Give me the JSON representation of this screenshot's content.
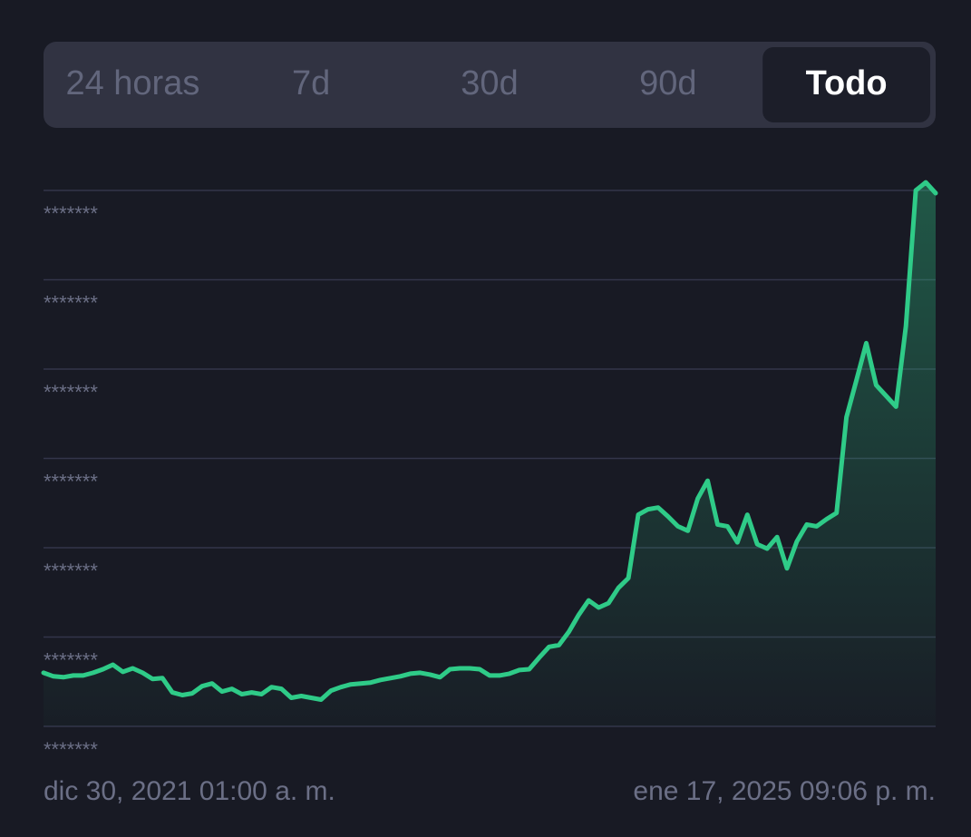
{
  "tabs": [
    "24 horas",
    "7d",
    "30d",
    "90d",
    "Todo"
  ],
  "selected_tab": 4,
  "chart_data": {
    "type": "line",
    "color": "#2fcb88",
    "categories": [
      "dic 30, 2021 01:00 a. m.",
      null,
      null,
      null,
      null,
      null,
      null,
      null,
      null,
      null,
      null,
      null,
      null,
      null,
      null,
      null,
      null,
      null,
      null,
      null,
      null,
      null,
      null,
      null,
      null,
      null,
      null,
      null,
      null,
      null,
      null,
      null,
      null,
      null,
      null,
      null,
      null,
      null,
      null,
      null,
      null,
      null,
      null,
      null,
      null,
      null,
      null,
      null,
      null,
      null,
      null,
      null,
      null,
      null,
      null,
      null,
      null,
      null,
      null,
      null,
      null,
      null,
      null,
      null,
      null,
      null,
      null,
      null,
      null,
      null,
      null,
      null,
      null,
      null,
      null,
      null,
      null,
      null,
      null,
      null,
      null,
      null,
      null,
      null,
      null,
      null,
      null,
      null,
      null,
      null,
      "ene 17, 2025 09:06 p. m."
    ],
    "values": [
      0.6,
      0.56,
      0.55,
      0.57,
      0.57,
      0.6,
      0.64,
      0.69,
      0.61,
      0.65,
      0.6,
      0.53,
      0.54,
      0.38,
      0.35,
      0.37,
      0.45,
      0.48,
      0.39,
      0.42,
      0.36,
      0.38,
      0.36,
      0.44,
      0.42,
      0.32,
      0.34,
      0.32,
      0.3,
      0.4,
      0.44,
      0.47,
      0.48,
      0.49,
      0.52,
      0.54,
      0.56,
      0.59,
      0.6,
      0.58,
      0.55,
      0.64,
      0.65,
      0.65,
      0.64,
      0.57,
      0.57,
      0.59,
      0.63,
      0.64,
      0.77,
      0.89,
      0.91,
      1.06,
      1.25,
      1.41,
      1.33,
      1.38,
      1.55,
      1.66,
      2.37,
      2.43,
      2.45,
      2.35,
      2.24,
      2.19,
      2.55,
      2.75,
      2.26,
      2.24,
      2.06,
      2.37,
      2.04,
      1.99,
      2.12,
      1.77,
      2.07,
      2.26,
      2.24,
      2.32,
      2.39,
      3.46,
      3.87,
      4.29,
      3.82,
      3.7,
      3.58,
      4.48,
      6.0,
      6.09,
      5.97
    ],
    "ylim": [
      0,
      6
    ],
    "yticks": [
      {
        "value": 6,
        "label": "*******"
      },
      {
        "value": 5,
        "label": "*******"
      },
      {
        "value": 4,
        "label": "*******"
      },
      {
        "value": 3,
        "label": "*******"
      },
      {
        "value": 2,
        "label": "*******"
      },
      {
        "value": 1,
        "label": "*******"
      },
      {
        "value": 0,
        "label": "*******"
      }
    ],
    "grid": true
  }
}
